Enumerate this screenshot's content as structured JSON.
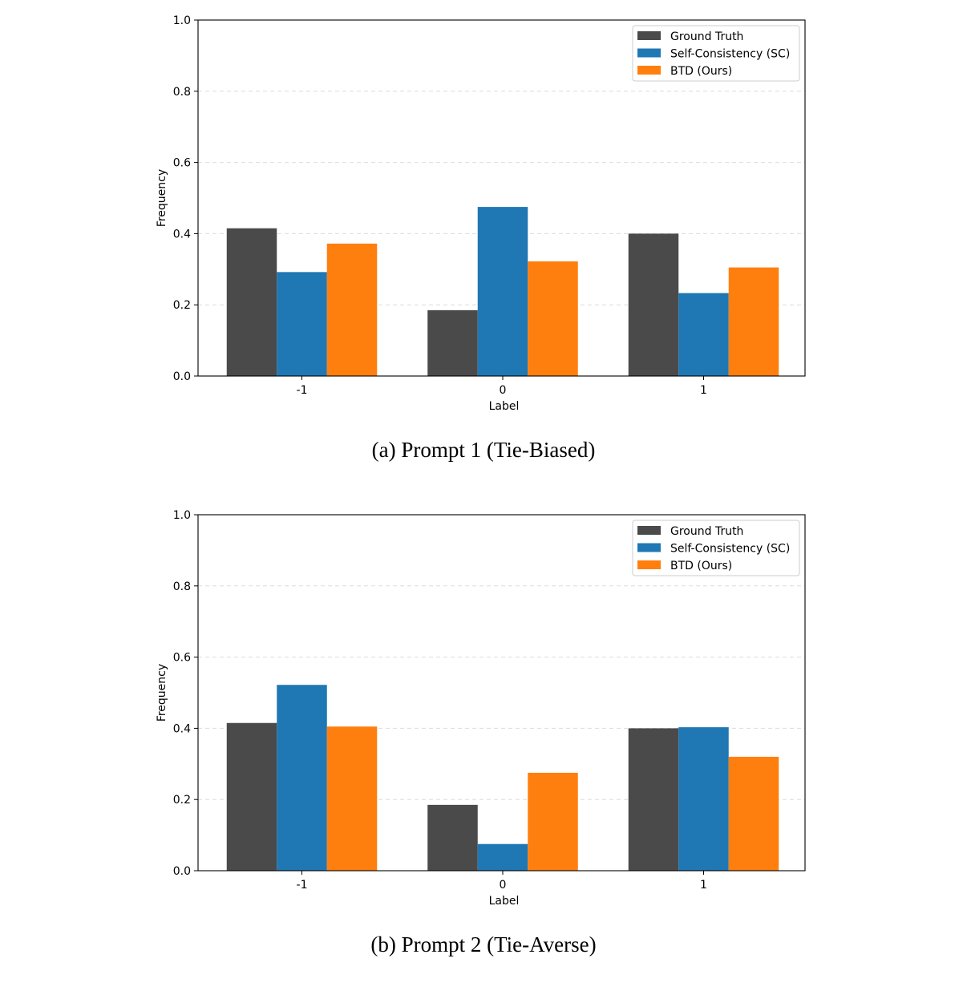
{
  "chart_data": [
    {
      "type": "bar",
      "title": "",
      "caption": "(a) Prompt 1 (Tie-Biased)",
      "xlabel": "Label",
      "ylabel": "Frequency",
      "ylim": [
        0,
        1.0
      ],
      "yticks": [
        "0.0",
        "0.2",
        "0.4",
        "0.6",
        "0.8",
        "1.0"
      ],
      "categories": [
        "-1",
        "0",
        "1"
      ],
      "grid": "y-dashed",
      "legend_position": "top-right",
      "series": [
        {
          "name": "Ground Truth",
          "color": "#4a4a4a",
          "values": [
            0.415,
            0.185,
            0.4
          ]
        },
        {
          "name": "Self-Consistency (SC)",
          "color": "#1f77b4",
          "values": [
            0.292,
            0.475,
            0.233
          ]
        },
        {
          "name": "BTD (Ours)",
          "color": "#ff7f0e",
          "values": [
            0.372,
            0.322,
            0.305
          ]
        }
      ]
    },
    {
      "type": "bar",
      "title": "",
      "caption": "(b) Prompt 2 (Tie-Averse)",
      "xlabel": "Label",
      "ylabel": "Frequency",
      "ylim": [
        0,
        1.0
      ],
      "yticks": [
        "0.0",
        "0.2",
        "0.4",
        "0.6",
        "0.8",
        "1.0"
      ],
      "categories": [
        "-1",
        "0",
        "1"
      ],
      "grid": "y-dashed",
      "legend_position": "top-right",
      "series": [
        {
          "name": "Ground Truth",
          "color": "#4a4a4a",
          "values": [
            0.415,
            0.185,
            0.4
          ]
        },
        {
          "name": "Self-Consistency (SC)",
          "color": "#1f77b4",
          "values": [
            0.522,
            0.075,
            0.403
          ]
        },
        {
          "name": "BTD (Ours)",
          "color": "#ff7f0e",
          "values": [
            0.405,
            0.275,
            0.32
          ]
        }
      ]
    }
  ]
}
